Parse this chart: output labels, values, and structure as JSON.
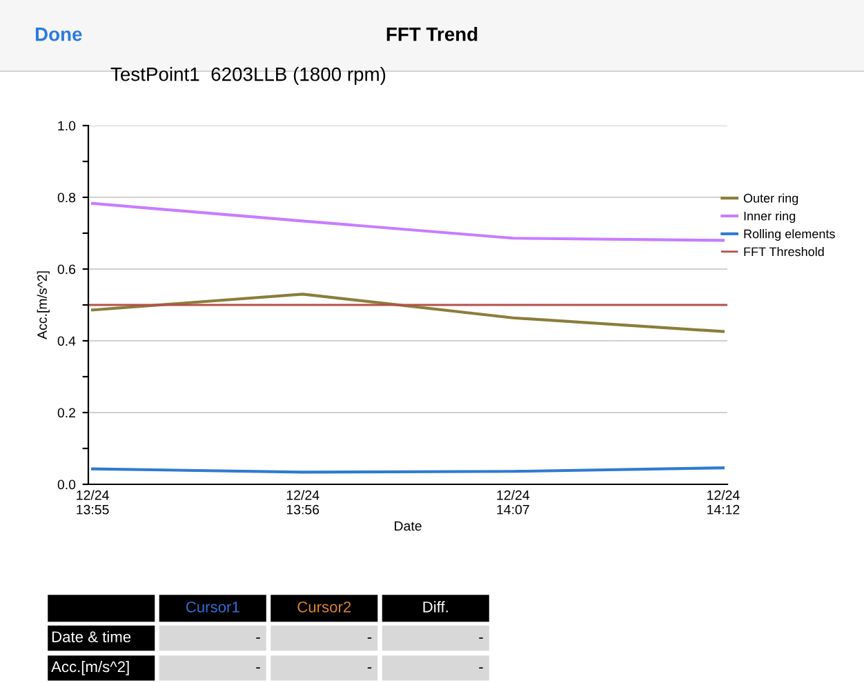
{
  "chart_data": [
    {
      "type": "line",
      "title": "FFT Trend",
      "subtitle": "TestPoint1  6203LLB (1800 rpm)",
      "xlabel": "Date",
      "ylabel": "Acc.[m/s^2]",
      "annotations": [
        "Done"
      ],
      "categories": [
        "12/24\n13:55",
        "12/24\n13:56",
        "12/24\n14:07",
        "12/24\n14:12"
      ],
      "series": [
        {
          "name": "Outer ring",
          "color": "#8b7d3a",
          "values": [
            0.486,
            0.53,
            0.464,
            0.426
          ]
        },
        {
          "name": "Inner ring",
          "color": "#c77dff",
          "values": [
            0.783,
            0.734,
            0.686,
            0.68
          ]
        },
        {
          "name": "Rolling elements",
          "color": "#2f7bd0",
          "values": [
            0.043,
            0.034,
            0.036,
            0.046
          ]
        }
      ],
      "ref_lines": [
        {
          "axis": "y",
          "value": 0.5,
          "label": "FFT Threshold",
          "color": "#b5504a"
        }
      ],
      "ylim": [
        0,
        1.0
      ],
      "yticks": [
        {
          "value": 0,
          "label": "0.0"
        },
        {
          "value": 0.1,
          "label": null
        },
        0.2,
        {
          "value": 0.3,
          "label": null
        },
        0.4,
        {
          "value": 0.5,
          "label": null
        },
        0.6,
        {
          "value": 0.7,
          "label": null
        },
        0.8,
        {
          "value": 0.9,
          "label": null
        },
        {
          "value": 1,
          "label": "1.0"
        }
      ],
      "grid": "y",
      "legend": "right",
      "marker": "none",
      "line_style": "solid"
    },
    {
      "type": "other",
      "categories": [
        "Cursor1",
        "Cursor2",
        "Diff."
      ],
      "y_categories": [
        "Date & time",
        "Acc.[m/s^2]"
      ],
      "cell_labels": [
        [
          "-",
          "-",
          "-"
        ],
        [
          "-",
          "-",
          "-"
        ]
      ]
    }
  ]
}
